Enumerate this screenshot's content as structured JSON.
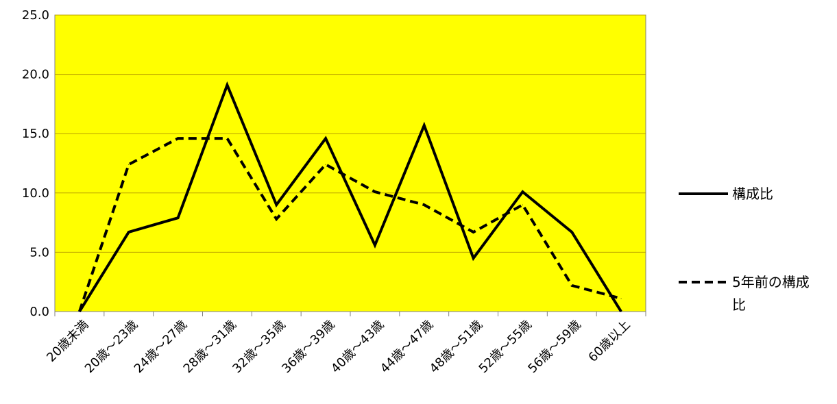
{
  "chart_data": {
    "type": "line",
    "categories": [
      "20歳未満",
      "20歳～23歳",
      "24歳～27歳",
      "28歳～31歳",
      "32歳～35歳",
      "36歳～39歳",
      "40歳～43歳",
      "44歳～47歳",
      "48歳～51歳",
      "52歳～55歳",
      "56歳～59歳",
      "60歳以上"
    ],
    "series": [
      {
        "name": "構成比",
        "values": [
          0.0,
          6.7,
          7.9,
          19.1,
          9.0,
          14.6,
          5.6,
          15.7,
          4.5,
          10.1,
          6.7,
          0.0
        ],
        "style": "solid"
      },
      {
        "name": "5年前の構成比",
        "values": [
          0.0,
          12.4,
          14.6,
          14.6,
          7.8,
          12.4,
          10.1,
          9.0,
          6.7,
          9.0,
          2.2,
          1.1
        ],
        "style": "dashed"
      }
    ],
    "yticks": [
      "0.0",
      "5.0",
      "10.0",
      "15.0",
      "20.0",
      "25.0"
    ],
    "ylim": [
      0,
      25
    ],
    "grid": true,
    "legend": "right",
    "colors": {
      "plot_background": "#ffff00",
      "gridline": "#b8a000",
      "series_line": "#000000"
    }
  }
}
